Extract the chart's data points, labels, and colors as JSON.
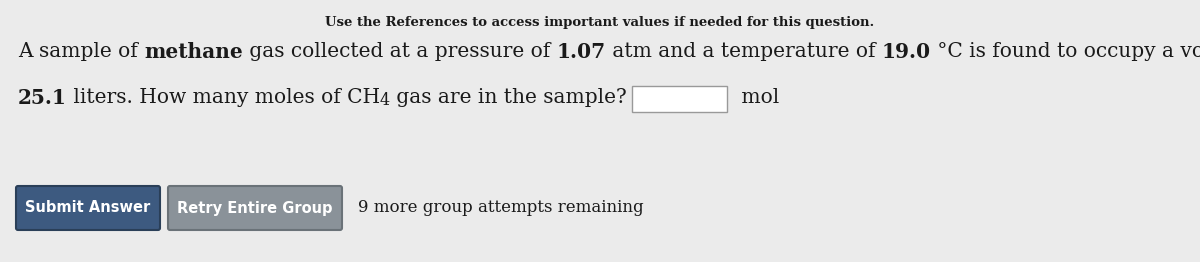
{
  "bg_color": "#ebebeb",
  "header_text": "Use the References to access important values if needed for this question.",
  "text_color": "#1a1a1a",
  "box_color": "#ffffff",
  "box_border": "#999999",
  "btn1_text": "Submit Answer",
  "btn1_color": "#3d5a80",
  "btn2_text": "Retry Entire Group",
  "btn2_color": "#8a9299",
  "remaining_text": "9 more group attempts remaining",
  "font_size_main": 14.5,
  "font_size_header": 9.5,
  "font_size_btn": 10.5,
  "font_size_remaining": 12
}
